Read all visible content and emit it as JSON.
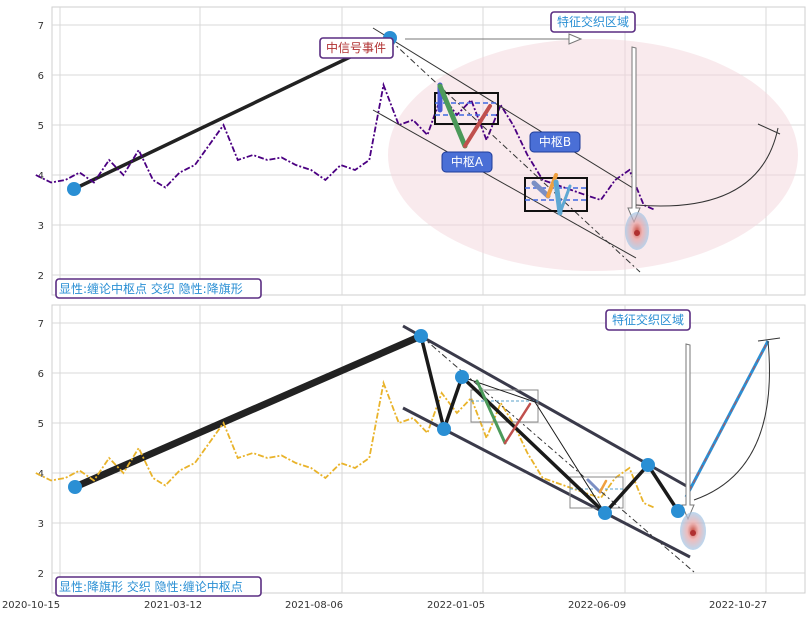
{
  "chart_data": [
    {
      "type": "line",
      "panel": "top",
      "ylim": [
        1.6,
        7.4
      ],
      "yticks": [
        "2",
        "3",
        "4",
        "5",
        "6",
        "7"
      ],
      "series": [
        {
          "name": "",
          "style": "dash-dot",
          "color": "#4b0082",
          "x": [
            "2020-10-20",
            "2020-11-05",
            "2020-11-20",
            "2020-12-05",
            "2020-12-20",
            "2021-01-05",
            "2021-01-20",
            "2021-02-05",
            "2021-02-20",
            "2021-03-05",
            "2021-03-20",
            "2021-04-05",
            "2021-04-20",
            "2021-05-05",
            "2021-05-20",
            "2021-06-05",
            "2021-06-20",
            "2021-07-05",
            "2021-07-20",
            "2021-08-05",
            "2021-08-20",
            "2021-09-05",
            "2021-09-20",
            "2021-10-05",
            "2021-10-20",
            "2021-11-05",
            "2021-11-20",
            "2021-12-05",
            "2021-12-20",
            "2022-01-05",
            "2022-01-20",
            "2022-02-05",
            "2022-02-20",
            "2022-03-05",
            "2022-03-20",
            "2022-04-05",
            "2022-04-20",
            "2022-05-05",
            "2022-05-20",
            "2022-06-05",
            "2022-06-20",
            "2022-07-05",
            "2022-07-20",
            "2022-08-01"
          ],
          "values": [
            4.0,
            3.85,
            3.9,
            4.05,
            3.85,
            4.3,
            4.0,
            4.5,
            3.9,
            3.75,
            4.05,
            4.2,
            4.6,
            5.0,
            4.3,
            4.4,
            4.3,
            4.35,
            4.2,
            4.1,
            3.9,
            4.2,
            4.1,
            4.3,
            5.8,
            5.0,
            5.1,
            4.8,
            5.6,
            5.2,
            5.5,
            4.7,
            5.4,
            5.0,
            4.4,
            3.9,
            3.8,
            3.7,
            3.6,
            3.5,
            3.9,
            4.1,
            3.4,
            3.3
          ]
        }
      ],
      "annotations": {
        "signal_event": "中信号事件",
        "feature_zone": "特征交织区域",
        "pivot_a": "中枢A",
        "pivot_b": "中枢B",
        "legend_box": "显性:缠论中枢点 交织 隐性:降旗形"
      }
    },
    {
      "type": "line",
      "panel": "bottom",
      "ylim": [
        1.6,
        7.4
      ],
      "yticks": [
        "2",
        "3",
        "4",
        "5",
        "6",
        "7"
      ],
      "xticks": [
        "2020-10-15",
        "2021-03-12",
        "2021-08-06",
        "2022-01-05",
        "2022-06-09",
        "2022-10-27"
      ],
      "series": [
        {
          "name": "",
          "style": "dash-dot",
          "color": "#e9b32a",
          "x": [
            "2020-10-20",
            "2020-11-05",
            "2020-11-20",
            "2020-12-05",
            "2020-12-20",
            "2021-01-05",
            "2021-01-20",
            "2021-02-05",
            "2021-02-20",
            "2021-03-05",
            "2021-03-20",
            "2021-04-05",
            "2021-04-20",
            "2021-05-05",
            "2021-05-20",
            "2021-06-05",
            "2021-06-20",
            "2021-07-05",
            "2021-07-20",
            "2021-08-05",
            "2021-08-20",
            "2021-09-05",
            "2021-09-20",
            "2021-10-05",
            "2021-10-20",
            "2021-11-05",
            "2021-11-20",
            "2021-12-05",
            "2021-12-20",
            "2022-01-05",
            "2022-01-20",
            "2022-02-05",
            "2022-02-20",
            "2022-03-05",
            "2022-03-20",
            "2022-04-05",
            "2022-04-20",
            "2022-05-05",
            "2022-05-20",
            "2022-06-05",
            "2022-06-20",
            "2022-07-05",
            "2022-07-20",
            "2022-08-01"
          ],
          "values": [
            4.0,
            3.85,
            3.9,
            4.05,
            3.85,
            4.3,
            4.0,
            4.5,
            3.9,
            3.75,
            4.05,
            4.2,
            4.6,
            5.0,
            4.3,
            4.4,
            4.3,
            4.35,
            4.2,
            4.1,
            3.9,
            4.2,
            4.1,
            4.3,
            5.8,
            5.0,
            5.1,
            4.8,
            5.6,
            5.2,
            5.5,
            4.7,
            5.4,
            5.0,
            4.4,
            3.9,
            3.8,
            3.7,
            3.6,
            3.5,
            3.9,
            4.1,
            3.4,
            3.3
          ]
        }
      ],
      "annotations": {
        "feature_zone": "特征交织区域",
        "legend_box": "显性:降旗形 交织 隐性:缠论中枢点"
      }
    }
  ]
}
